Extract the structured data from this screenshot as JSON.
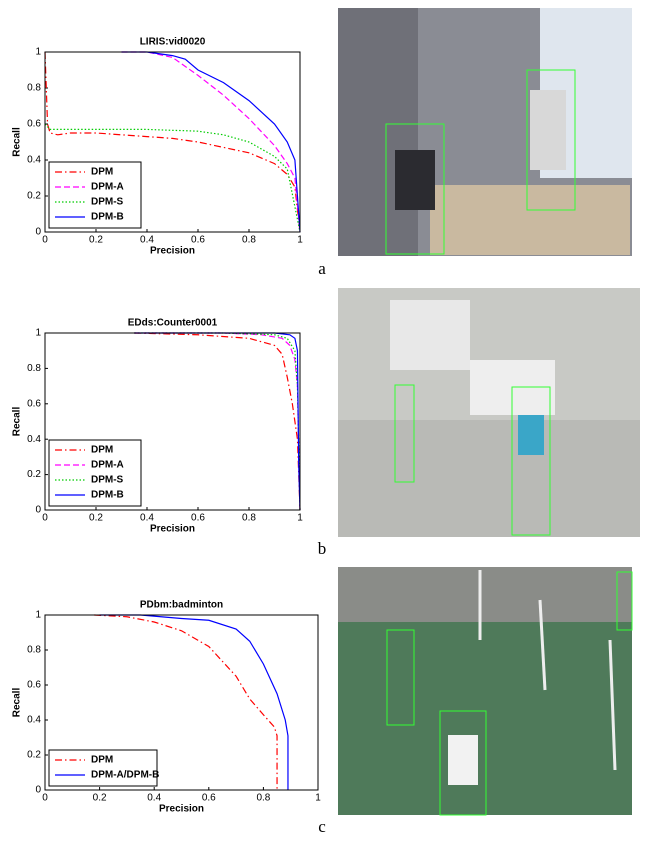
{
  "chart_data": [
    {
      "type": "line",
      "title": "LIRIS:vid0020",
      "xlabel": "Precision",
      "ylabel": "Recall",
      "xlim": [
        0,
        1
      ],
      "ylim": [
        0,
        1
      ],
      "xticks": [
        0,
        0.2,
        0.4,
        0.6,
        0.8,
        1
      ],
      "yticks": [
        0,
        0.2,
        0.4,
        0.6,
        0.8,
        1
      ],
      "legend": "lower left",
      "series": [
        {
          "name": "DPM",
          "color": "#ff0000",
          "style": "dashdot",
          "x": [
            0,
            0.01,
            0.02,
            0.05,
            0.1,
            0.2,
            0.3,
            0.4,
            0.5,
            0.6,
            0.7,
            0.8,
            0.9,
            0.95,
            0.98,
            1
          ],
          "values": [
            1,
            0.6,
            0.55,
            0.54,
            0.55,
            0.55,
            0.54,
            0.53,
            0.52,
            0.5,
            0.47,
            0.44,
            0.38,
            0.32,
            0.25,
            0
          ]
        },
        {
          "name": "DPM-A",
          "color": "#ff00ff",
          "style": "dashed",
          "x": [
            0.3,
            0.4,
            0.5,
            0.6,
            0.7,
            0.8,
            0.9,
            0.95,
            0.98,
            1
          ],
          "values": [
            1,
            1,
            0.97,
            0.87,
            0.76,
            0.63,
            0.48,
            0.38,
            0.3,
            0
          ]
        },
        {
          "name": "DPM-S",
          "color": "#00cc00",
          "style": "dotted",
          "x": [
            0,
            0.02,
            0.1,
            0.2,
            0.4,
            0.6,
            0.7,
            0.8,
            0.9,
            0.95,
            1
          ],
          "values": [
            0.6,
            0.57,
            0.57,
            0.57,
            0.57,
            0.56,
            0.54,
            0.5,
            0.42,
            0.35,
            0
          ]
        },
        {
          "name": "DPM-B",
          "color": "#0000ff",
          "style": "solid",
          "x": [
            0.3,
            0.4,
            0.5,
            0.55,
            0.6,
            0.7,
            0.8,
            0.9,
            0.95,
            0.98,
            1
          ],
          "values": [
            1,
            1,
            0.98,
            0.96,
            0.9,
            0.83,
            0.73,
            0.6,
            0.5,
            0.4,
            0
          ]
        }
      ]
    },
    {
      "type": "line",
      "title": "EDds:Counter0001",
      "xlabel": "Precision",
      "ylabel": "Recall",
      "xlim": [
        0,
        1
      ],
      "ylim": [
        0,
        1
      ],
      "xticks": [
        0,
        0.2,
        0.4,
        0.6,
        0.8,
        1
      ],
      "yticks": [
        0,
        0.2,
        0.4,
        0.6,
        0.8,
        1
      ],
      "legend": "lower left",
      "series": [
        {
          "name": "DPM",
          "color": "#ff0000",
          "style": "dashdot",
          "x": [
            0.35,
            0.6,
            0.8,
            0.9,
            0.93,
            0.95,
            0.97,
            0.98,
            0.99,
            1
          ],
          "values": [
            1,
            0.99,
            0.97,
            0.93,
            0.88,
            0.75,
            0.6,
            0.5,
            0.4,
            0
          ]
        },
        {
          "name": "DPM-A",
          "color": "#ff00ff",
          "style": "dashed",
          "x": [
            0.35,
            0.7,
            0.85,
            0.93,
            0.96,
            0.98,
            0.99,
            1
          ],
          "values": [
            1,
            1,
            0.99,
            0.97,
            0.93,
            0.85,
            0.7,
            0
          ]
        },
        {
          "name": "DPM-S",
          "color": "#00cc00",
          "style": "dotted",
          "x": [
            0.35,
            0.7,
            0.9,
            0.95,
            0.98,
            0.99,
            1
          ],
          "values": [
            1,
            1,
            0.99,
            0.97,
            0.9,
            0.7,
            0
          ]
        },
        {
          "name": "DPM-B",
          "color": "#0000ff",
          "style": "solid",
          "x": [
            0.35,
            0.7,
            0.9,
            0.96,
            0.98,
            0.99,
            0.995,
            1
          ],
          "values": [
            1,
            1,
            1,
            0.99,
            0.97,
            0.9,
            0.25,
            0
          ]
        }
      ]
    },
    {
      "type": "line",
      "title": "PDbm:badminton",
      "xlabel": "Precision",
      "ylabel": "Recall",
      "xlim": [
        0,
        1
      ],
      "ylim": [
        0,
        1
      ],
      "xticks": [
        0,
        0.2,
        0.4,
        0.6,
        0.8,
        1
      ],
      "yticks": [
        0,
        0.2,
        0.4,
        0.6,
        0.8,
        1
      ],
      "legend": "lower left",
      "series": [
        {
          "name": "DPM",
          "color": "#ff0000",
          "style": "dashdot",
          "x": [
            0.18,
            0.3,
            0.4,
            0.5,
            0.6,
            0.7,
            0.75,
            0.8,
            0.84,
            0.85,
            0.85
          ],
          "values": [
            1,
            0.99,
            0.96,
            0.91,
            0.82,
            0.65,
            0.52,
            0.43,
            0.36,
            0.31,
            0
          ]
        },
        {
          "name": "DPM-A/DPM-B",
          "color": "#0000ff",
          "style": "solid",
          "x": [
            0.2,
            0.35,
            0.5,
            0.6,
            0.7,
            0.75,
            0.8,
            0.85,
            0.88,
            0.89,
            0.89
          ],
          "values": [
            1,
            1,
            0.98,
            0.97,
            0.92,
            0.85,
            0.72,
            0.55,
            0.4,
            0.31,
            0
          ]
        }
      ]
    }
  ],
  "captions": [
    "a",
    "b",
    "c"
  ]
}
